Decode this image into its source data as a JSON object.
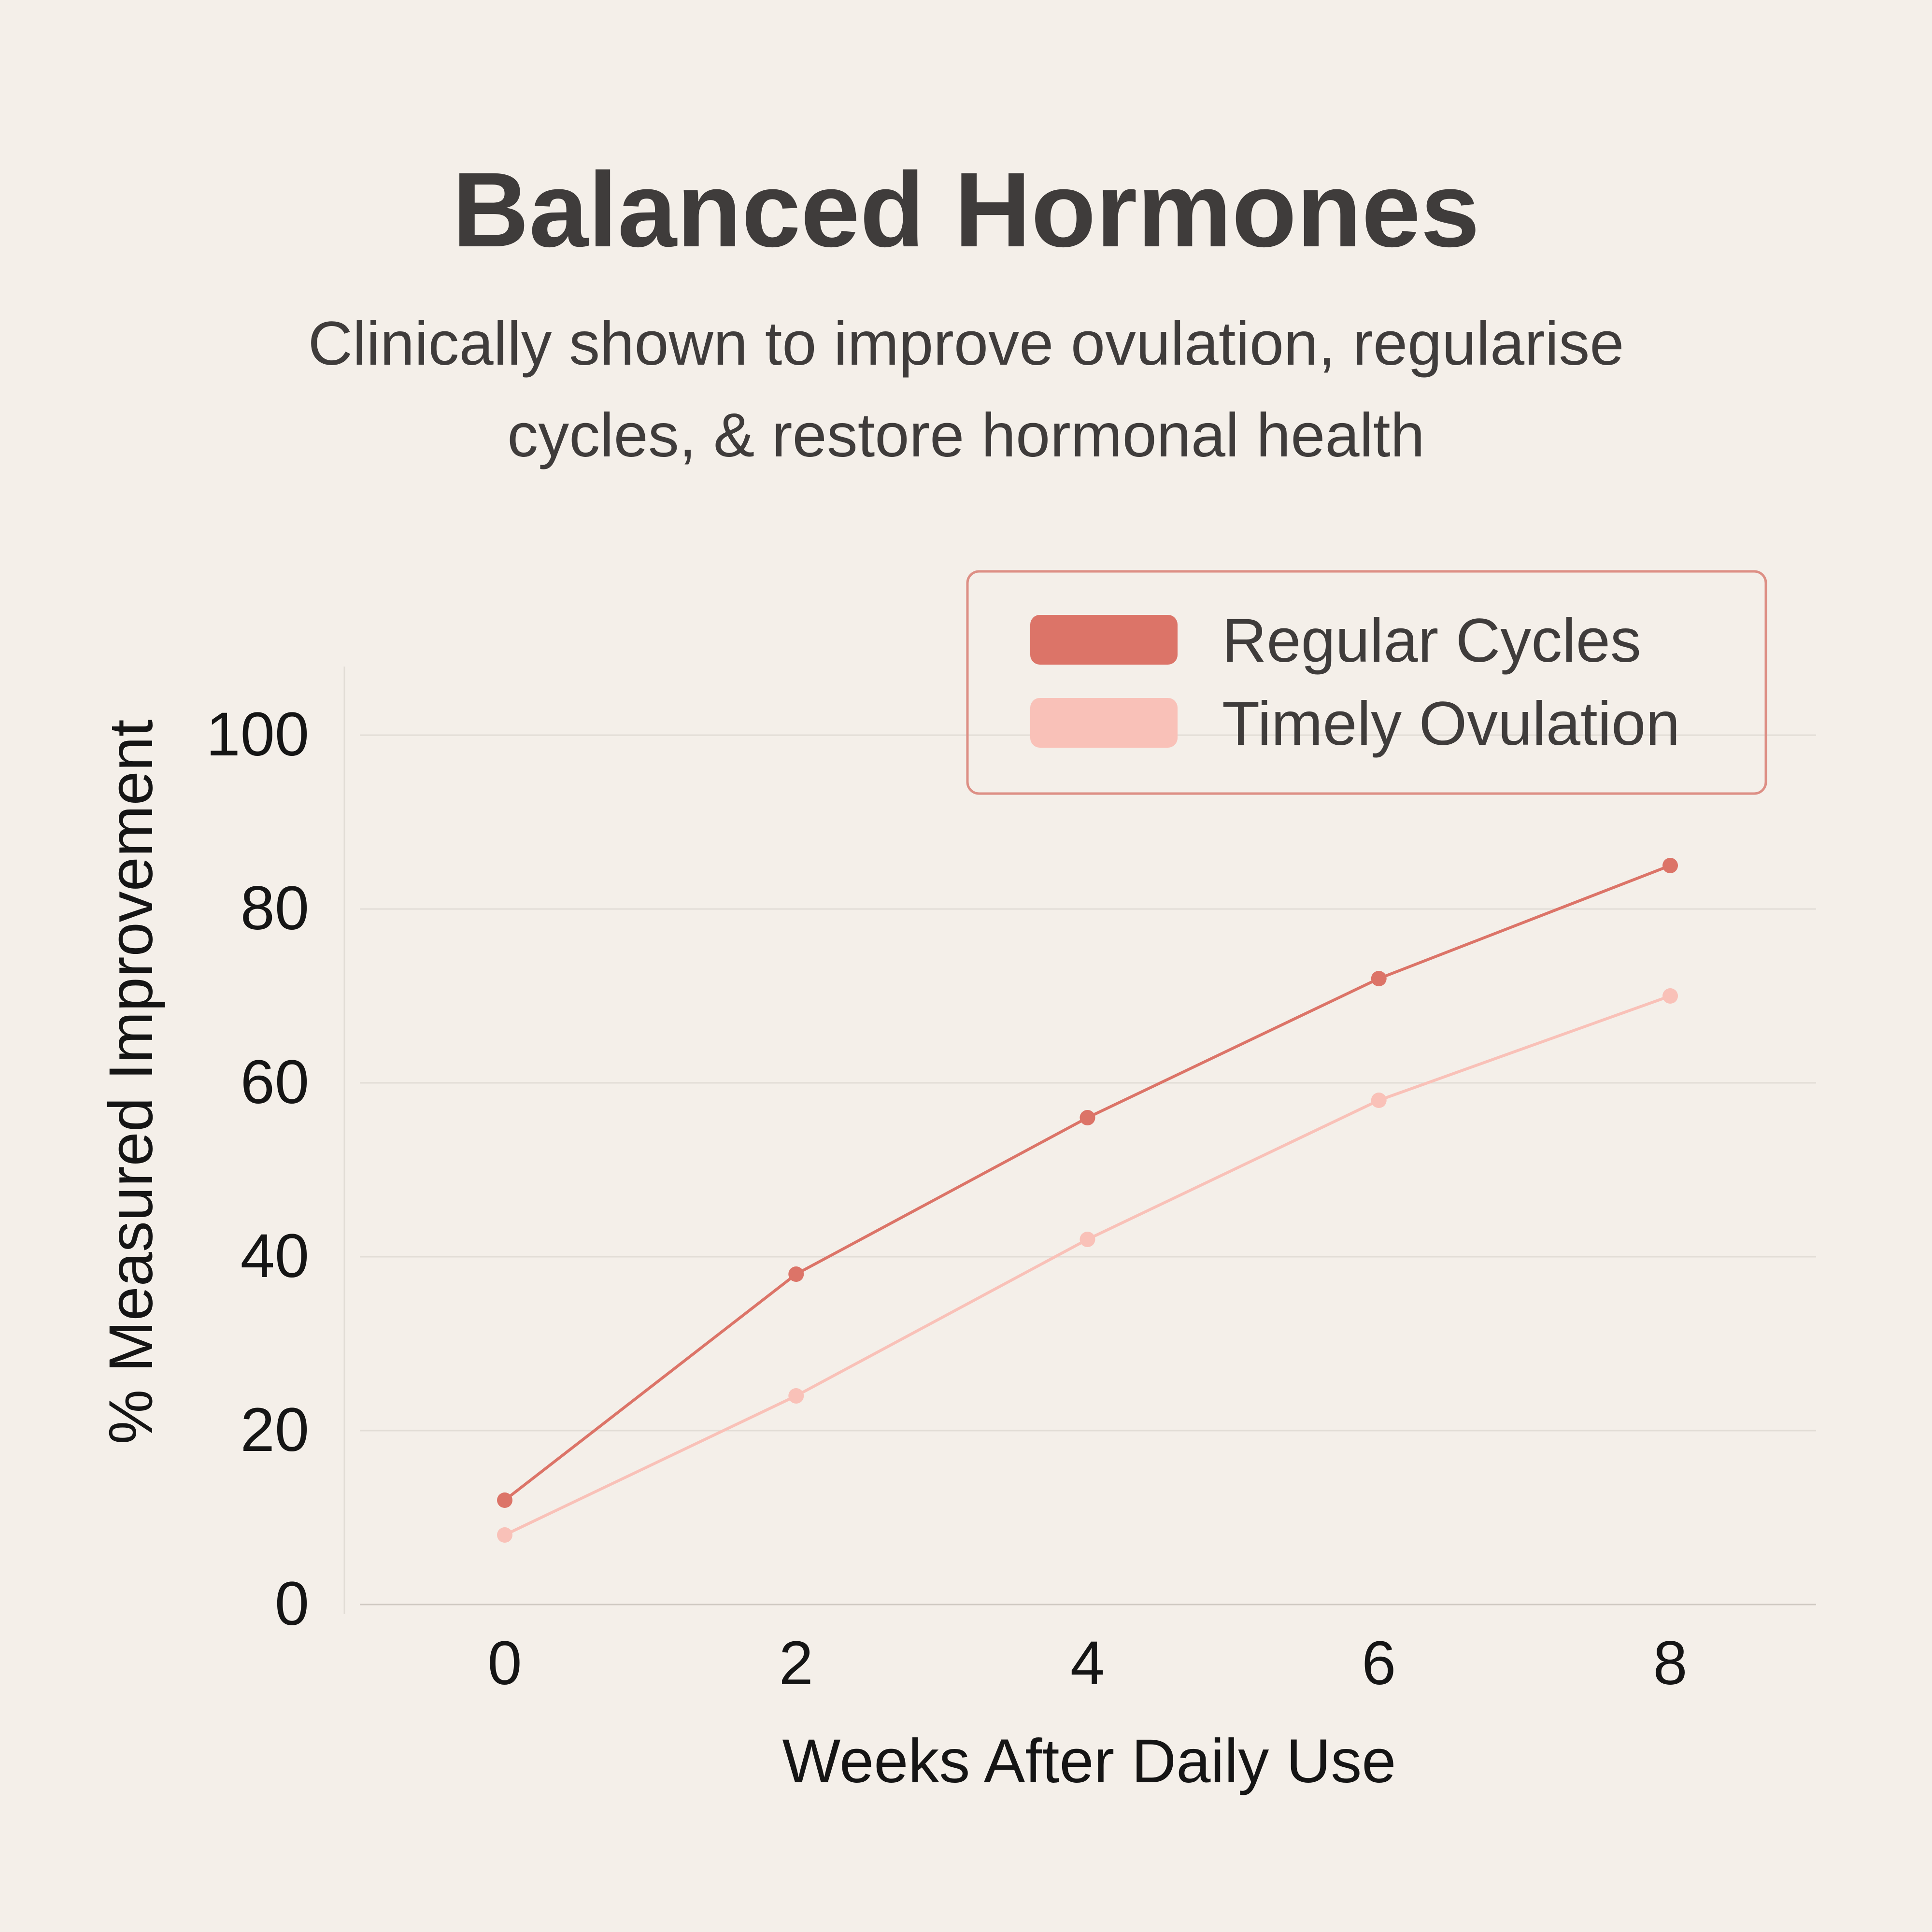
{
  "title": "Balanced Hormones",
  "subtitle_lines": [
    "Clinically shown to improve ovulation, regularise",
    "cycles, & restore hormonal health"
  ],
  "colors": {
    "background": "#f4efe9",
    "text": "#3f3c3b",
    "axis_text": "#151515",
    "grid": "#e2ddd6",
    "axis": "#cfc9c2",
    "legend_border": "#dd8f85"
  },
  "chart_data": {
    "type": "line",
    "title": "Balanced Hormones",
    "xlabel": "Weeks After Daily Use",
    "ylabel": "% Measured Improvement",
    "x": [
      0,
      2,
      4,
      6,
      8
    ],
    "x_ticks": [
      "0",
      "2",
      "4",
      "6",
      "8"
    ],
    "y_ticks": [
      "0",
      "20",
      "40",
      "60",
      "80",
      "100"
    ],
    "ylim": [
      0,
      105
    ],
    "grid": true,
    "legend_position": "top-right",
    "series": [
      {
        "name": "Regular Cycles",
        "color": "#dc7468",
        "values": [
          12,
          38,
          56,
          72,
          85
        ]
      },
      {
        "name": "Timely Ovulation",
        "color": "#f9c1b8",
        "values": [
          8,
          24,
          42,
          58,
          70
        ]
      }
    ]
  }
}
